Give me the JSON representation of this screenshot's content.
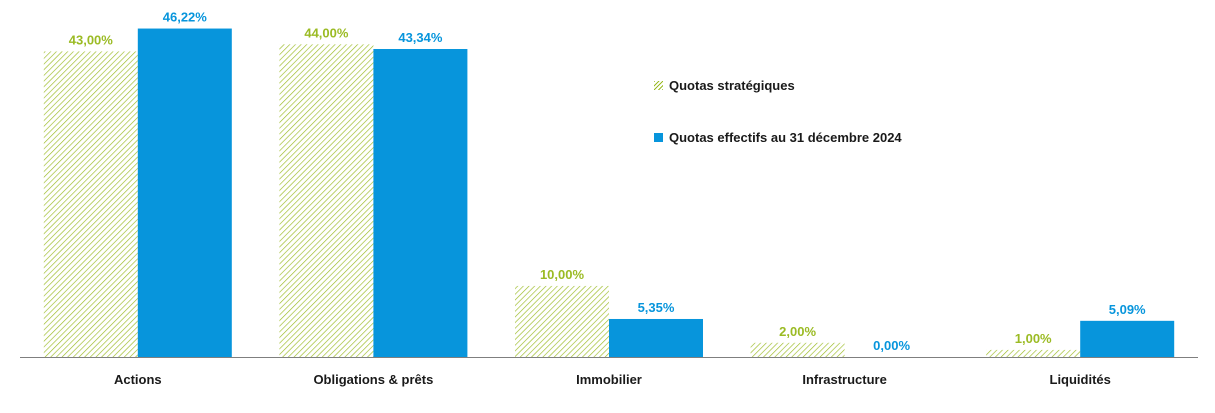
{
  "colors": {
    "strategic": "#9bbb24",
    "effective": "#0795dc",
    "axis": "#7f7f7f",
    "text": "#1a1a1a"
  },
  "legend": {
    "items": [
      {
        "label": "Quotas stratégiques",
        "style": "hatched",
        "color": "#9bbb24"
      },
      {
        "label": "Quotas effectifs au 31 décembre 2024",
        "style": "solid",
        "color": "#0795dc"
      }
    ],
    "position": "top-right"
  },
  "chart_data": {
    "type": "bar",
    "title": "",
    "xlabel": "",
    "ylabel": "",
    "ylim": [
      0,
      47
    ],
    "grid": false,
    "legend_position": "top-right",
    "categories": [
      "Actions",
      "Obligations & prêts",
      "Immobilier",
      "Infrastructure",
      "Liquidités"
    ],
    "series": [
      {
        "name": "Quotas stratégiques",
        "values": [
          43.0,
          44.0,
          10.0,
          2.0,
          1.0
        ],
        "labels": [
          "43,00%",
          "44,00%",
          "10,00%",
          "2,00%",
          "1,00%"
        ]
      },
      {
        "name": "Quotas effectifs au 31 décembre 2024",
        "values": [
          46.22,
          43.34,
          5.35,
          0.0,
          5.09
        ],
        "labels": [
          "46,22%",
          "43,34%",
          "5,35%",
          "0,00%",
          "5,09%"
        ]
      }
    ]
  }
}
